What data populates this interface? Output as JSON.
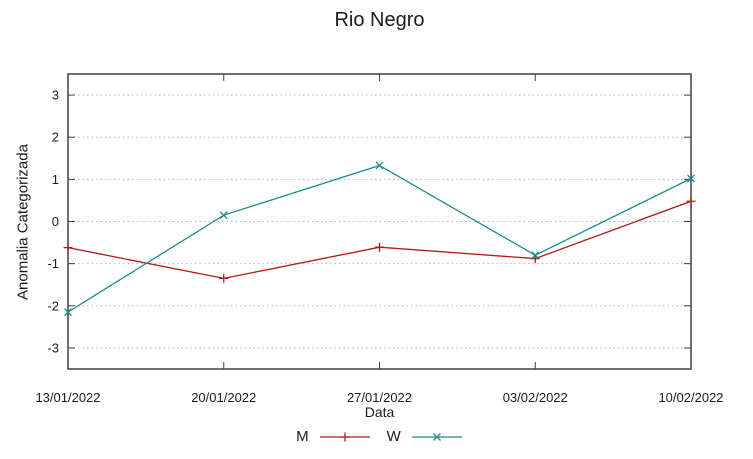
{
  "chart_data": {
    "type": "line",
    "title": "Rio Negro",
    "xlabel": "Data",
    "ylabel": "Anomalia Categorizada",
    "categories": [
      "13/01/2022",
      "20/01/2022",
      "27/01/2022",
      "03/02/2022",
      "10/02/2022"
    ],
    "series": [
      {
        "name": "M",
        "color": "#b21919",
        "marker": "plus",
        "values": [
          -0.62,
          -1.35,
          -0.61,
          -0.88,
          0.48
        ]
      },
      {
        "name": "W",
        "color": "#1d8c8c",
        "marker": "cross",
        "values": [
          -2.15,
          0.15,
          1.33,
          -0.8,
          1.02
        ]
      }
    ],
    "ylim": [
      -3.5,
      3.5
    ],
    "yticks": [
      3,
      2,
      1,
      0,
      -1,
      -2,
      -3
    ],
    "grid": "horizontal-dotted",
    "legend_position": "bottom-center",
    "colors": {
      "axis": "#404040",
      "grid": "#b3b3b3",
      "text": "#1c1c1c",
      "background": "#ffffff"
    }
  }
}
